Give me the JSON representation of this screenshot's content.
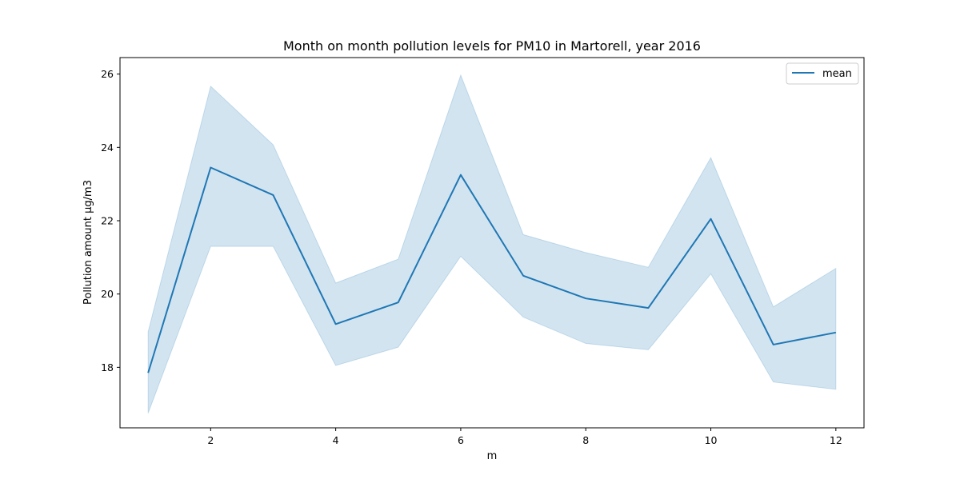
{
  "chart_data": {
    "type": "line",
    "title": "Month on month pollution levels for PM10 in Martorell, year 2016",
    "xlabel": "m",
    "ylabel": "Pollution amount µg/m3",
    "x": [
      1,
      2,
      3,
      4,
      5,
      6,
      7,
      8,
      9,
      10,
      11,
      12
    ],
    "xlim": [
      0.55,
      12.45
    ],
    "ylim": [
      16.35,
      26.45
    ],
    "xticks": [
      2,
      4,
      6,
      8,
      10,
      12
    ],
    "yticks": [
      18,
      20,
      22,
      24,
      26
    ],
    "grid": false,
    "legend_position": "top-right",
    "series": [
      {
        "name": "mean",
        "color": "#1f77b4",
        "values": [
          17.85,
          23.45,
          22.7,
          19.18,
          19.77,
          23.25,
          20.5,
          19.88,
          19.62,
          22.05,
          18.62,
          18.95
        ],
        "ci_lower": [
          16.75,
          21.3,
          21.3,
          18.05,
          18.55,
          21.03,
          19.37,
          18.65,
          18.48,
          20.55,
          17.6,
          17.4
        ],
        "ci_upper": [
          18.97,
          25.67,
          24.07,
          20.3,
          20.95,
          25.97,
          21.62,
          21.13,
          20.73,
          23.72,
          19.65,
          20.7
        ],
        "band_color": "#1f77b4"
      }
    ]
  }
}
